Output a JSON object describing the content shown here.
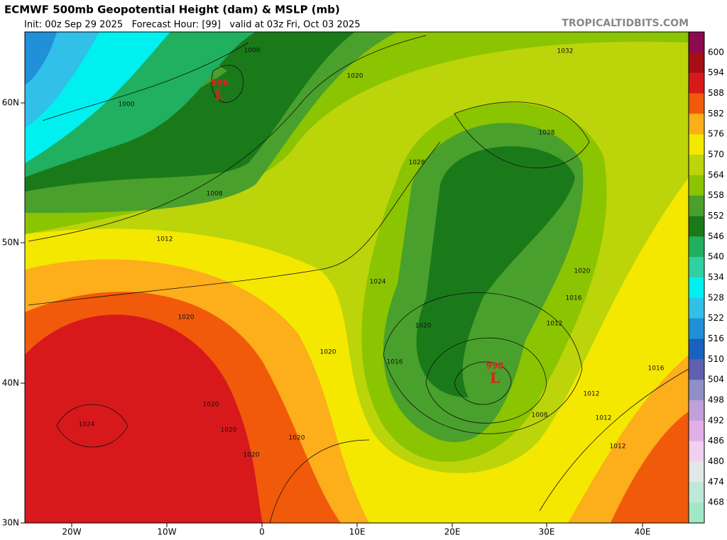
{
  "header": {
    "title": "ECMWF 500mb Geopotential Height (dam) & MSLP (mb)",
    "subtitle": "Init: 00z Sep 29 2025   Forecast Hour: [99]   valid at 03z Fri, Oct 03 2025",
    "source": "TROPICALTIDBITS.COM"
  },
  "map": {
    "lat_labels": [
      "60N",
      "50N",
      "40N",
      "30N"
    ],
    "lon_labels": [
      "20W",
      "10W",
      "0",
      "10E",
      "20E",
      "30E",
      "40E"
    ],
    "isobar_labels": [
      1000,
      1000,
      1020,
      1032,
      1028,
      1028,
      1008,
      1012,
      1024,
      1020,
      1016,
      1012,
      1020,
      1020,
      1020,
      1016,
      1020,
      1024,
      1020,
      1020,
      1020,
      1016,
      1012,
      1012,
      1008,
      1012
    ],
    "lows": [
      {
        "symbol": "L",
        "pressure": 996
      },
      {
        "symbol": "L",
        "pressure": 998
      }
    ]
  },
  "colorbar": {
    "levels": [
      600,
      594,
      588,
      582,
      576,
      570,
      564,
      558,
      552,
      546,
      540,
      534,
      528,
      522,
      516,
      510,
      504,
      498,
      492,
      486,
      480,
      474,
      468
    ],
    "colors": [
      "#8b0a50",
      "#a50f15",
      "#d7191c",
      "#f05a0a",
      "#fdae1b",
      "#f4e800",
      "#bcd40a",
      "#8bc400",
      "#4aa02c",
      "#1a7a1a",
      "#20b060",
      "#30d0a0",
      "#00f0f0",
      "#30c0e8",
      "#2090d8",
      "#1a60c0",
      "#6060b0",
      "#9090c8",
      "#c0a0d8",
      "#e0b0e8",
      "#f0d0f0",
      "#e0e8e8",
      "#c0e8d8",
      "#a0e8c8"
    ]
  }
}
